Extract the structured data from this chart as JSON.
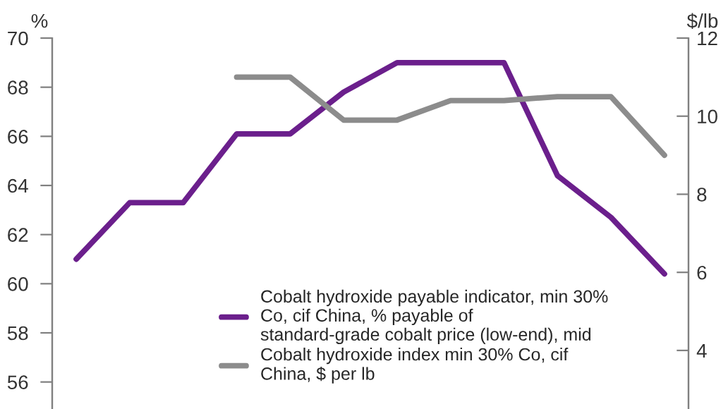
{
  "chart_data": {
    "type": "line",
    "ylabel": "%",
    "y2label": "$/lb",
    "categories": [
      null,
      null,
      null,
      null,
      null,
      null,
      null,
      null,
      null,
      null,
      null,
      null
    ],
    "series": [
      {
        "name": "Cobalt hydroxide payable indicator, min 30%\nCo, cif China, % payable of\nstandard-grade cobalt price (low-end), mid",
        "color": "#6b1f8c",
        "values": [
          61.0,
          63.3,
          63.3,
          66.1,
          66.1,
          67.8,
          69.0,
          69.0,
          69.0,
          64.4,
          62.7,
          60.4
        ]
      },
      {
        "name": "Cobalt hydroxide index min 30% Co, cif\nChina, $ per lb",
        "color": "#8c8c8c",
        "axis": "y2",
        "values": [
          null,
          null,
          null,
          11.0,
          11.0,
          9.9,
          9.9,
          10.4,
          10.4,
          10.5,
          10.5,
          9.0
        ]
      }
    ],
    "ylim": [
      54.9,
      70
    ],
    "yticks": [
      56,
      58,
      60,
      62,
      64,
      66,
      68,
      70
    ],
    "y2lim": [
      2.5,
      12
    ],
    "y2ticks": [
      4,
      6,
      8,
      10,
      12
    ],
    "legend": "bottom",
    "grid": false,
    "marker": "none",
    "line_style": "solid"
  }
}
